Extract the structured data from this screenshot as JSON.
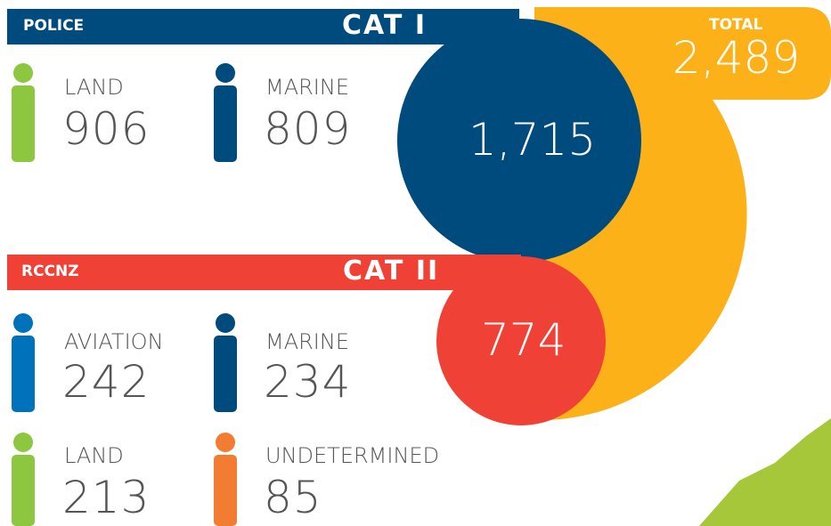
{
  "total": {
    "label": "TOTAL",
    "value": "2,489"
  },
  "cat1": {
    "agency": "POLICE",
    "category": "CAT I",
    "value": "1,715",
    "items": [
      {
        "label": "LAND",
        "value": "906"
      },
      {
        "label": "MARINE",
        "value": "809"
      }
    ]
  },
  "cat2": {
    "agency": "RCCNZ",
    "category": "CAT II",
    "value": "774",
    "items": [
      {
        "label": "AVIATION",
        "value": "242"
      },
      {
        "label": "MARINE",
        "value": "234"
      },
      {
        "label": "LAND",
        "value": "213"
      },
      {
        "label": "UNDETERMINED",
        "value": "85"
      }
    ]
  }
}
